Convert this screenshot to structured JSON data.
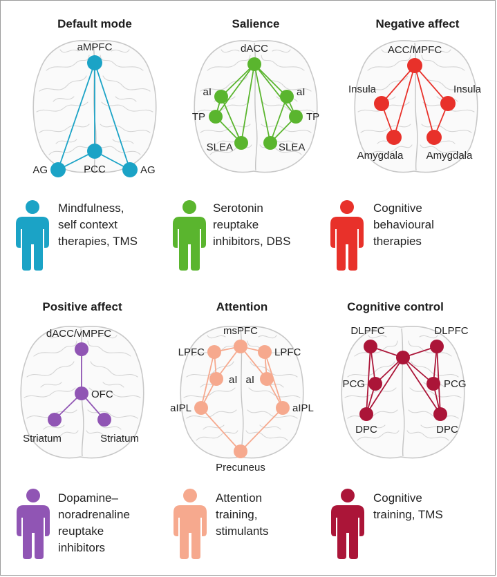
{
  "panels": [
    {
      "id": "default-mode",
      "title": "Default mode",
      "color": "#1ba3c6",
      "nodes": [
        {
          "id": "ampfc",
          "label": "aMPFC"
        },
        {
          "id": "pcc",
          "label": "PCC"
        },
        {
          "id": "ag-left",
          "label": "AG"
        },
        {
          "id": "ag-right",
          "label": "AG"
        }
      ],
      "edges": [
        [
          "ampfc",
          "pcc"
        ],
        [
          "ampfc",
          "ag-left"
        ],
        [
          "ampfc",
          "ag-right"
        ],
        [
          "pcc",
          "ag-left"
        ],
        [
          "pcc",
          "ag-right"
        ]
      ],
      "treatment_lines": [
        "Mindfulness,",
        "self context",
        "therapies, TMS"
      ]
    },
    {
      "id": "salience",
      "title": "Salience",
      "color": "#5ab52e",
      "nodes": [
        {
          "id": "dacc",
          "label": "dACC"
        },
        {
          "id": "ai-left",
          "label": "aI"
        },
        {
          "id": "ai-right",
          "label": "aI"
        },
        {
          "id": "tp-left",
          "label": "TP"
        },
        {
          "id": "tp-right",
          "label": "TP"
        },
        {
          "id": "slea-left",
          "label": "SLEA"
        },
        {
          "id": "slea-right",
          "label": "SLEA"
        }
      ],
      "edges": [
        [
          "dacc",
          "ai-left"
        ],
        [
          "dacc",
          "ai-right"
        ],
        [
          "dacc",
          "tp-left"
        ],
        [
          "dacc",
          "tp-right"
        ],
        [
          "dacc",
          "slea-left"
        ],
        [
          "dacc",
          "slea-right"
        ],
        [
          "ai-left",
          "tp-left"
        ],
        [
          "ai-left",
          "slea-left"
        ],
        [
          "tp-left",
          "slea-left"
        ],
        [
          "ai-right",
          "tp-right"
        ],
        [
          "ai-right",
          "slea-right"
        ],
        [
          "tp-right",
          "slea-right"
        ]
      ],
      "treatment_lines": [
        "Serotonin",
        "reuptake",
        "inhibitors, DBS"
      ]
    },
    {
      "id": "negative-affect",
      "title": "Negative affect",
      "color": "#e8312a",
      "nodes": [
        {
          "id": "accmpfc",
          "label": "ACC/MPFC"
        },
        {
          "id": "insula-left",
          "label": "Insula"
        },
        {
          "id": "insula-right",
          "label": "Insula"
        },
        {
          "id": "amygdala-left",
          "label": "Amygdala"
        },
        {
          "id": "amygdala-right",
          "label": "Amygdala"
        }
      ],
      "edges": [
        [
          "accmpfc",
          "insula-left"
        ],
        [
          "accmpfc",
          "insula-right"
        ],
        [
          "accmpfc",
          "amygdala-left"
        ],
        [
          "accmpfc",
          "amygdala-right"
        ],
        [
          "insula-left",
          "amygdala-left"
        ],
        [
          "insula-right",
          "amygdala-right"
        ]
      ],
      "treatment_lines": [
        "Cognitive",
        "behavioural",
        "therapies"
      ]
    },
    {
      "id": "positive-affect",
      "title": "Positive affect",
      "color": "#9055b4",
      "nodes": [
        {
          "id": "daccvmpfc",
          "label": "dACC/vMPFC"
        },
        {
          "id": "ofc",
          "label": "OFC"
        },
        {
          "id": "striatum-left",
          "label": "Striatum"
        },
        {
          "id": "striatum-right",
          "label": "Striatum"
        }
      ],
      "edges": [
        [
          "daccvmpfc",
          "ofc"
        ],
        [
          "ofc",
          "striatum-left"
        ],
        [
          "ofc",
          "striatum-right"
        ]
      ],
      "treatment_lines": [
        "Dopamine–",
        "noradrenaline",
        "reuptake",
        "inhibitors"
      ]
    },
    {
      "id": "attention",
      "title": "Attention",
      "color": "#f6a98e",
      "nodes": [
        {
          "id": "mspfc",
          "label": "msPFC"
        },
        {
          "id": "lpfc-left",
          "label": "LPFC"
        },
        {
          "id": "lpfc-right",
          "label": "LPFC"
        },
        {
          "id": "ai-left",
          "label": "aI"
        },
        {
          "id": "ai-right",
          "label": "aI"
        },
        {
          "id": "aipl-left",
          "label": "aIPL"
        },
        {
          "id": "aipl-right",
          "label": "aIPL"
        },
        {
          "id": "precuneus",
          "label": "Precuneus"
        }
      ],
      "edges": [
        [
          "mspfc",
          "lpfc-left"
        ],
        [
          "mspfc",
          "lpfc-right"
        ],
        [
          "mspfc",
          "ai-left"
        ],
        [
          "mspfc",
          "ai-right"
        ],
        [
          "lpfc-left",
          "ai-left"
        ],
        [
          "lpfc-right",
          "ai-right"
        ],
        [
          "lpfc-left",
          "aipl-left"
        ],
        [
          "lpfc-right",
          "aipl-right"
        ],
        [
          "ai-left",
          "aipl-left"
        ],
        [
          "ai-right",
          "aipl-right"
        ],
        [
          "aipl-left",
          "precuneus"
        ],
        [
          "aipl-right",
          "precuneus"
        ]
      ],
      "treatment_lines": [
        "Attention",
        "training,",
        "stimulants"
      ]
    },
    {
      "id": "cognitive-control",
      "title": "Cognitive control",
      "color": "#ab1538",
      "nodes": [
        {
          "id": "center",
          "label": ""
        },
        {
          "id": "dlpfc-left",
          "label": "DLPFC"
        },
        {
          "id": "dlpfc-right",
          "label": "DLPFC"
        },
        {
          "id": "pcg-left",
          "label": "PCG"
        },
        {
          "id": "pcg-right",
          "label": "PCG"
        },
        {
          "id": "dpc-left",
          "label": "DPC"
        },
        {
          "id": "dpc-right",
          "label": "DPC"
        }
      ],
      "edges": [
        [
          "center",
          "dlpfc-left"
        ],
        [
          "center",
          "dlpfc-right"
        ],
        [
          "center",
          "pcg-left"
        ],
        [
          "center",
          "pcg-right"
        ],
        [
          "center",
          "dpc-left"
        ],
        [
          "center",
          "dpc-right"
        ],
        [
          "dlpfc-left",
          "pcg-left"
        ],
        [
          "dlpfc-left",
          "dpc-left"
        ],
        [
          "pcg-left",
          "dpc-left"
        ],
        [
          "dlpfc-right",
          "pcg-right"
        ],
        [
          "dlpfc-right",
          "dpc-right"
        ],
        [
          "pcg-right",
          "dpc-right"
        ]
      ],
      "treatment_lines": [
        "Cognitive",
        "training, TMS"
      ]
    }
  ]
}
